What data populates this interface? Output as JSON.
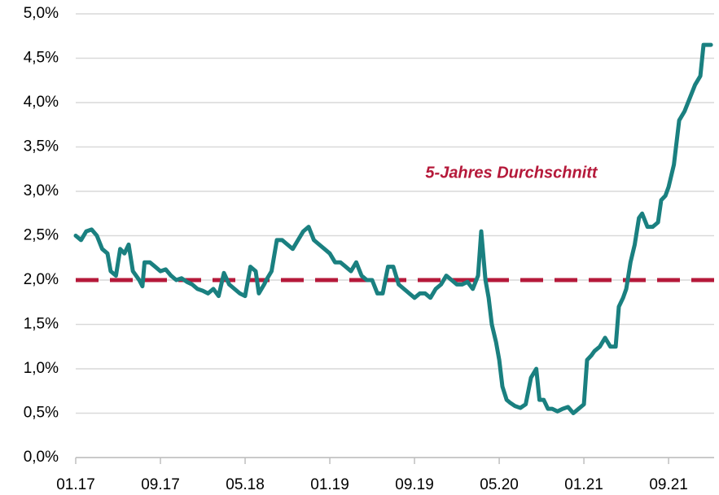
{
  "chart_data": {
    "type": "line",
    "x": [
      0,
      0.5,
      1,
      1.5,
      2,
      2.5,
      3,
      3.3,
      3.8,
      4.2,
      4.6,
      5,
      5.4,
      6,
      6.3,
      6.5,
      7,
      7.5,
      8,
      8.5,
      9,
      9.5,
      10,
      10.5,
      11,
      11.5,
      12,
      12.5,
      13,
      13.5,
      14,
      14.5,
      15,
      15.5,
      16,
      16.5,
      17,
      17.3,
      17.8,
      18,
      18.5,
      19,
      19.5,
      20,
      20.5,
      21,
      21.5,
      22,
      22.5,
      23,
      23.5,
      24,
      24.5,
      25,
      25.5,
      26,
      26.5,
      27,
      27.5,
      28,
      28.5,
      29,
      29.5,
      30,
      30.5,
      31,
      31.5,
      32,
      32.5,
      33,
      33.5,
      34,
      34.5,
      35,
      35.5,
      36,
      36.5,
      37,
      37.5,
      38,
      38.3,
      38.7,
      39,
      39.3,
      39.7,
      40,
      40.3,
      40.7,
      41,
      41.5,
      42,
      42.5,
      43,
      43.5,
      43.8,
      44.2,
      44.6,
      45,
      45.5,
      46,
      46.5,
      47,
      47.5,
      48,
      48.3,
      48.7,
      49,
      49.5,
      50,
      50.5,
      51,
      51.3,
      51.7,
      52,
      52.4,
      52.8,
      53.2,
      53.5,
      54,
      54.5,
      55,
      55.3,
      55.7,
      56,
      56.5,
      57,
      57.5,
      58,
      58.5,
      59,
      59.3,
      60
    ],
    "values": [
      2.5,
      2.45,
      2.55,
      2.57,
      2.5,
      2.35,
      2.3,
      2.1,
      2.05,
      2.35,
      2.3,
      2.4,
      2.1,
      2.0,
      1.93,
      2.2,
      2.2,
      2.15,
      2.1,
      2.12,
      2.05,
      2.0,
      2.02,
      1.98,
      1.95,
      1.9,
      1.88,
      1.85,
      1.9,
      1.82,
      2.08,
      1.95,
      1.9,
      1.85,
      1.82,
      2.15,
      2.1,
      1.85,
      1.95,
      2.0,
      2.1,
      2.45,
      2.45,
      2.4,
      2.35,
      2.45,
      2.55,
      2.6,
      2.45,
      2.4,
      2.35,
      2.3,
      2.2,
      2.2,
      2.15,
      2.1,
      2.2,
      2.05,
      2.0,
      2.0,
      1.85,
      1.85,
      2.15,
      2.15,
      1.95,
      1.9,
      1.85,
      1.8,
      1.85,
      1.85,
      1.8,
      1.9,
      1.95,
      2.05,
      2.0,
      1.95,
      1.95,
      1.98,
      1.9,
      2.05,
      2.55,
      2.0,
      1.8,
      1.5,
      1.3,
      1.1,
      0.8,
      0.65,
      0.62,
      0.58,
      0.56,
      0.6,
      0.9,
      1.0,
      0.65,
      0.65,
      0.55,
      0.55,
      0.52,
      0.55,
      0.57,
      0.5,
      0.55,
      0.6,
      1.1,
      1.15,
      1.2,
      1.25,
      1.35,
      1.25,
      1.25,
      1.7,
      1.8,
      1.9,
      2.2,
      2.4,
      2.7,
      2.75,
      2.6,
      2.6,
      2.65,
      2.9,
      2.95,
      3.05,
      3.3,
      3.8,
      3.9,
      4.05,
      4.2,
      4.3,
      4.65,
      4.65
    ],
    "color": "#1a8080",
    "xlim": [
      0,
      60.3
    ],
    "xticks": [
      {
        "value": 0,
        "label": "01.17"
      },
      {
        "value": 8,
        "label": "09.17"
      },
      {
        "value": 16,
        "label": "05.18"
      },
      {
        "value": 24,
        "label": "01.19"
      },
      {
        "value": 32,
        "label": "09.19"
      },
      {
        "value": 40,
        "label": "05.20"
      },
      {
        "value": 48,
        "label": "01.21"
      },
      {
        "value": 56,
        "label": "09.21"
      }
    ],
    "ylim": [
      0,
      5
    ],
    "yticks": [
      {
        "value": 0,
        "label": "0,0%"
      },
      {
        "value": 0.5,
        "label": "0,5%"
      },
      {
        "value": 1,
        "label": "1,0%"
      },
      {
        "value": 1.5,
        "label": "1,5%"
      },
      {
        "value": 2,
        "label": "2,0%"
      },
      {
        "value": 2.5,
        "label": "2,5%"
      },
      {
        "value": 3,
        "label": "3,0%"
      },
      {
        "value": 3.5,
        "label": "3,5%"
      },
      {
        "value": 4,
        "label": "4,0%"
      },
      {
        "value": 4.5,
        "label": "4,5%"
      },
      {
        "value": 5,
        "label": "5,0%"
      }
    ],
    "grid": true,
    "reference_line": {
      "value": 2,
      "label": "5-Jahres Durchschnitt",
      "color": "#b5193a"
    }
  }
}
